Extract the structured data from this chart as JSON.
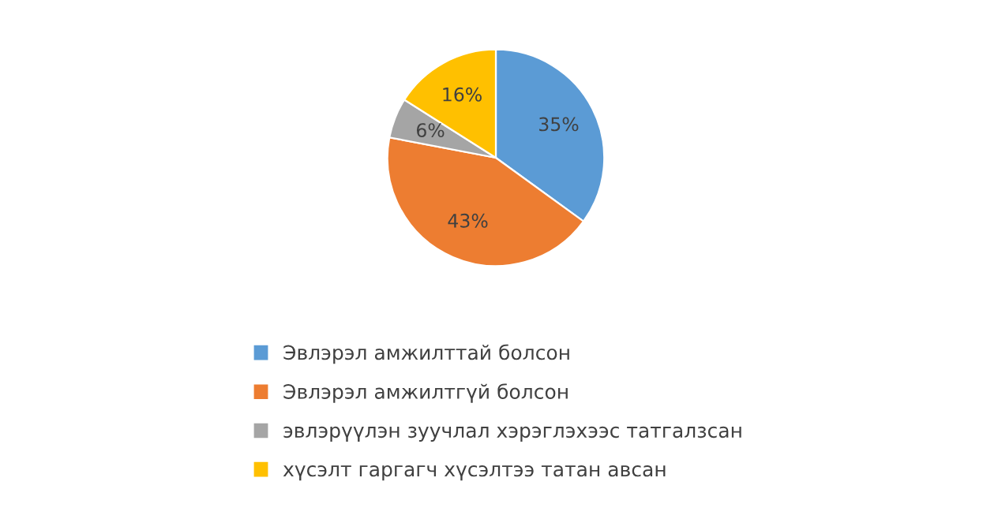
{
  "chart_data": {
    "type": "pie",
    "categories": [
      "Эвлэрэл амжилттай болсон",
      "Эвлэрэл амжилтгүй болсон",
      "эвлэрүүлэн зуучлал хэрэглэхээс татгалзсан",
      "хүсэлт гаргагч хүсэлтээ татан авсан"
    ],
    "values": [
      35,
      43,
      6,
      16
    ],
    "value_labels": [
      "35%",
      "43%",
      "6%",
      "16%"
    ],
    "colors": [
      "#5b9bd5",
      "#ed7d31",
      "#a5a5a5",
      "#ffc000"
    ],
    "legend": "bottom"
  }
}
